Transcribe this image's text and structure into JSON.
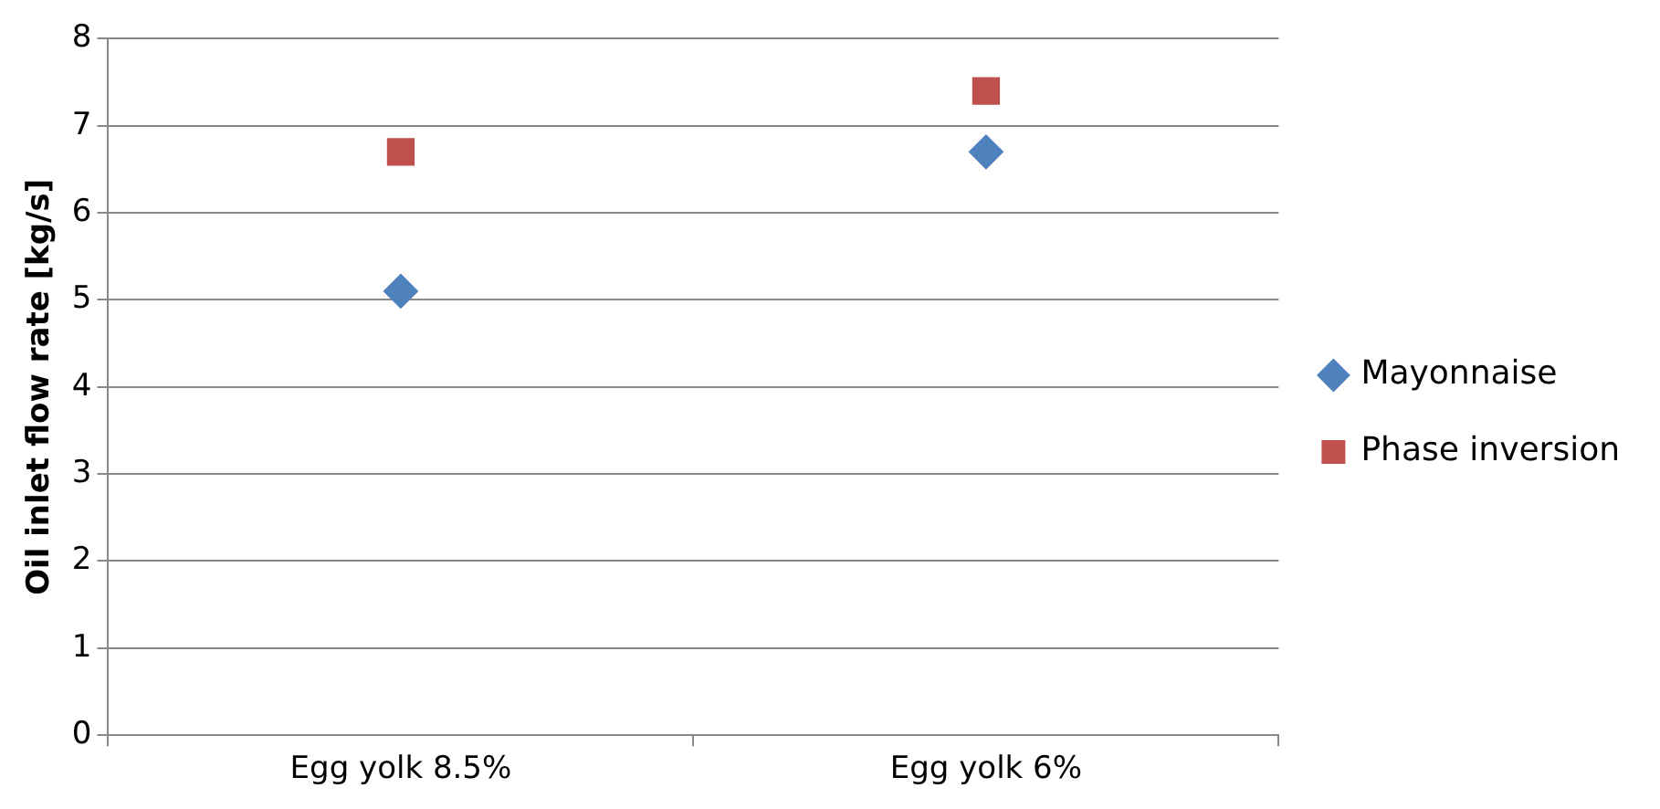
{
  "chart_data": {
    "type": "scatter",
    "ylabel": "Oil inlet flow rate [kg/s]",
    "categories": [
      "Egg yolk 8.5%",
      "Egg yolk 6%"
    ],
    "series": [
      {
        "name": "Mayonnaise",
        "color": "#4f81bd",
        "marker": "diamond",
        "values": [
          5.1,
          6.7
        ]
      },
      {
        "name": "Phase inversion",
        "color": "#c0504d",
        "marker": "square",
        "values": [
          6.7,
          7.4
        ]
      }
    ],
    "ylim": [
      0,
      8
    ],
    "yticks": [
      0,
      1,
      2,
      3,
      4,
      5,
      6,
      7,
      8
    ],
    "grid": "y",
    "legend": "right"
  }
}
